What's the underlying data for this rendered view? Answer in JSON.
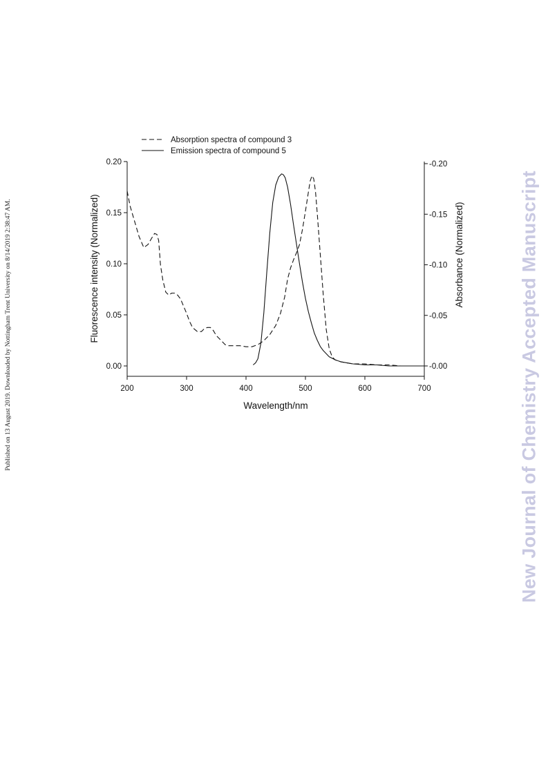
{
  "side_note": "Published on 13 August 2019. Downloaded by Nottingham Trent University on 8/14/2019 2:38:47 AM.",
  "watermark": "New Journal of Chemistry Accepted Manuscript",
  "colors": {
    "ink": "#111111",
    "watermark": "#c9c9e2"
  },
  "chart_data": {
    "type": "line",
    "title": "",
    "xlabel": "Wavelength/nm",
    "ylabel_left": "Fluorescence intensity (Normalized)",
    "ylabel_right": "Absorbance (Normalized)",
    "xlim": [
      200,
      700
    ],
    "ylim": [
      0,
      0.2
    ],
    "xticks": [
      "200",
      "300",
      "400",
      "500",
      "600",
      "700"
    ],
    "yticks_left": [
      "0.00",
      "0.05",
      "0.10",
      "0.15",
      "0.20"
    ],
    "yticks_right": [
      "0.00",
      "0.05",
      "0.10",
      "0.15",
      "0.20"
    ],
    "legend_position": "top-left",
    "grid": false,
    "series": [
      {
        "name": "Absorption spectra of compound 3",
        "style": "dashed",
        "axis": "right",
        "x": [
          200,
          205,
          210,
          215,
          220,
          228,
          235,
          242,
          246,
          250,
          253,
          256,
          260,
          265,
          270,
          275,
          280,
          285,
          290,
          295,
          300,
          305,
          310,
          318,
          325,
          330,
          335,
          340,
          345,
          350,
          355,
          360,
          365,
          370,
          380,
          390,
          400,
          410,
          420,
          430,
          440,
          450,
          458,
          465,
          470,
          475,
          480,
          485,
          490,
          495,
          500,
          505,
          508,
          511,
          514,
          517,
          520,
          525,
          530,
          535,
          540,
          545,
          550,
          555,
          560,
          570,
          580,
          590,
          600,
          620,
          640,
          660,
          680,
          700
        ],
        "y": [
          0.173,
          0.158,
          0.148,
          0.138,
          0.128,
          0.117,
          0.12,
          0.127,
          0.131,
          0.13,
          0.124,
          0.1,
          0.085,
          0.073,
          0.07,
          0.072,
          0.072,
          0.07,
          0.066,
          0.059,
          0.052,
          0.044,
          0.038,
          0.034,
          0.034,
          0.037,
          0.038,
          0.038,
          0.035,
          0.03,
          0.027,
          0.024,
          0.021,
          0.02,
          0.02,
          0.02,
          0.019,
          0.019,
          0.021,
          0.025,
          0.031,
          0.04,
          0.052,
          0.068,
          0.086,
          0.097,
          0.105,
          0.112,
          0.12,
          0.135,
          0.153,
          0.172,
          0.183,
          0.188,
          0.185,
          0.172,
          0.15,
          0.11,
          0.07,
          0.036,
          0.017,
          0.009,
          0.006,
          0.005,
          0.004,
          0.003,
          0.002,
          0.002,
          0.002,
          0.001,
          0.001,
          0.0,
          0.0,
          0.0
        ]
      },
      {
        "name": "Emission spectra of compound 5",
        "style": "solid",
        "axis": "left",
        "x": [
          412,
          416,
          420,
          425,
          430,
          435,
          440,
          445,
          450,
          455,
          460,
          463,
          466,
          470,
          475,
          480,
          485,
          490,
          495,
          500,
          505,
          510,
          515,
          520,
          525,
          530,
          540,
          550,
          560,
          570,
          580,
          600,
          620,
          640,
          660,
          680,
          700
        ],
        "y": [
          0.001,
          0.003,
          0.007,
          0.022,
          0.052,
          0.092,
          0.13,
          0.16,
          0.177,
          0.185,
          0.188,
          0.187,
          0.184,
          0.175,
          0.158,
          0.138,
          0.119,
          0.1,
          0.082,
          0.066,
          0.053,
          0.042,
          0.032,
          0.025,
          0.019,
          0.015,
          0.009,
          0.006,
          0.004,
          0.003,
          0.002,
          0.001,
          0.001,
          0.0,
          0.0,
          0.0,
          0.0
        ]
      }
    ]
  }
}
